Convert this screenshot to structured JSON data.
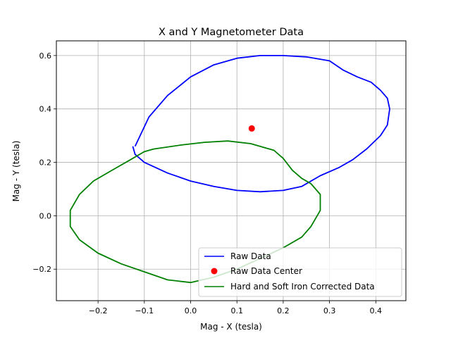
{
  "chart_data": {
    "type": "line",
    "title": "X and Y Magnetometer Data",
    "xlabel": "Mag - X (tesla)",
    "ylabel": "Mag - Y (tesla)",
    "xlim": [
      -0.29,
      0.465
    ],
    "ylim": [
      -0.318,
      0.655
    ],
    "xticks": [
      -0.2,
      -0.1,
      0.0,
      0.1,
      0.2,
      0.3,
      0.4
    ],
    "xtick_labels": [
      "−0.2",
      "−0.1",
      "0.0",
      "0.1",
      "0.2",
      "0.3",
      "0.4"
    ],
    "yticks": [
      -0.2,
      0.0,
      0.2,
      0.4,
      0.6
    ],
    "ytick_labels": [
      "−0.2",
      "0.0",
      "0.2",
      "0.4",
      "0.6"
    ],
    "grid": true,
    "legend_position": "lower-right",
    "series": [
      {
        "name": "Raw Data",
        "kind": "line",
        "color": "#0000ff",
        "points": [
          [
            -0.12,
            0.26
          ],
          [
            -0.09,
            0.37
          ],
          [
            -0.05,
            0.45
          ],
          [
            0.0,
            0.52
          ],
          [
            0.05,
            0.565
          ],
          [
            0.1,
            0.59
          ],
          [
            0.15,
            0.6
          ],
          [
            0.2,
            0.6
          ],
          [
            0.25,
            0.595
          ],
          [
            0.3,
            0.58
          ],
          [
            0.33,
            0.545
          ],
          [
            0.36,
            0.52
          ],
          [
            0.39,
            0.5
          ],
          [
            0.41,
            0.47
          ],
          [
            0.425,
            0.44
          ],
          [
            0.43,
            0.4
          ],
          [
            0.425,
            0.34
          ],
          [
            0.41,
            0.3
          ],
          [
            0.38,
            0.25
          ],
          [
            0.35,
            0.21
          ],
          [
            0.32,
            0.18
          ],
          [
            0.28,
            0.15
          ],
          [
            0.24,
            0.11
          ],
          [
            0.2,
            0.095
          ],
          [
            0.15,
            0.09
          ],
          [
            0.1,
            0.095
          ],
          [
            0.05,
            0.11
          ],
          [
            0.0,
            0.13
          ],
          [
            -0.05,
            0.16
          ],
          [
            -0.1,
            0.2
          ],
          [
            -0.12,
            0.23
          ],
          [
            -0.125,
            0.26
          ]
        ]
      },
      {
        "name": "Raw Data Center",
        "kind": "marker",
        "color": "#ff0000",
        "points": [
          [
            0.132,
            0.327
          ]
        ]
      },
      {
        "name": "Hard and Soft Iron Corrected Data",
        "kind": "line",
        "color": "#008000",
        "points": [
          [
            -0.08,
            0.25
          ],
          [
            -0.02,
            0.265
          ],
          [
            0.03,
            0.275
          ],
          [
            0.08,
            0.28
          ],
          [
            0.13,
            0.27
          ],
          [
            0.18,
            0.245
          ],
          [
            0.2,
            0.215
          ],
          [
            0.22,
            0.17
          ],
          [
            0.24,
            0.14
          ],
          [
            0.26,
            0.12
          ],
          [
            0.28,
            0.08
          ],
          [
            0.28,
            0.02
          ],
          [
            0.26,
            -0.04
          ],
          [
            0.24,
            -0.08
          ],
          [
            0.2,
            -0.12
          ],
          [
            0.15,
            -0.16
          ],
          [
            0.1,
            -0.2
          ],
          [
            0.05,
            -0.23
          ],
          [
            0.0,
            -0.25
          ],
          [
            -0.05,
            -0.24
          ],
          [
            -0.1,
            -0.21
          ],
          [
            -0.15,
            -0.18
          ],
          [
            -0.2,
            -0.14
          ],
          [
            -0.24,
            -0.09
          ],
          [
            -0.26,
            -0.04
          ],
          [
            -0.26,
            0.02
          ],
          [
            -0.24,
            0.08
          ],
          [
            -0.21,
            0.13
          ],
          [
            -0.17,
            0.17
          ],
          [
            -0.13,
            0.21
          ],
          [
            -0.1,
            0.24
          ],
          [
            -0.08,
            0.25
          ]
        ]
      }
    ]
  }
}
